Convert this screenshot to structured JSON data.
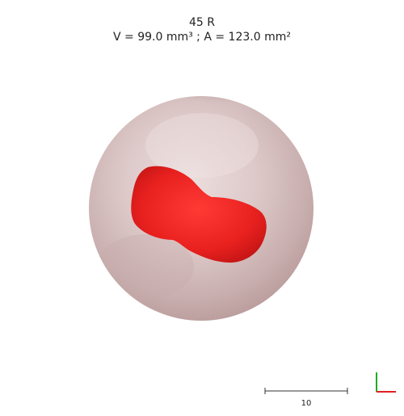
{
  "header": {
    "sample_label": "45 R",
    "metrics_text": "V = 99.0 mm³ ; A = 123.0 mm²"
  },
  "scale_bar": {
    "label": "10"
  },
  "colors": {
    "lesion": "#e8211f",
    "tissue": "#d9c3c3",
    "axis_x": "#e02020",
    "axis_y": "#22aa22"
  }
}
